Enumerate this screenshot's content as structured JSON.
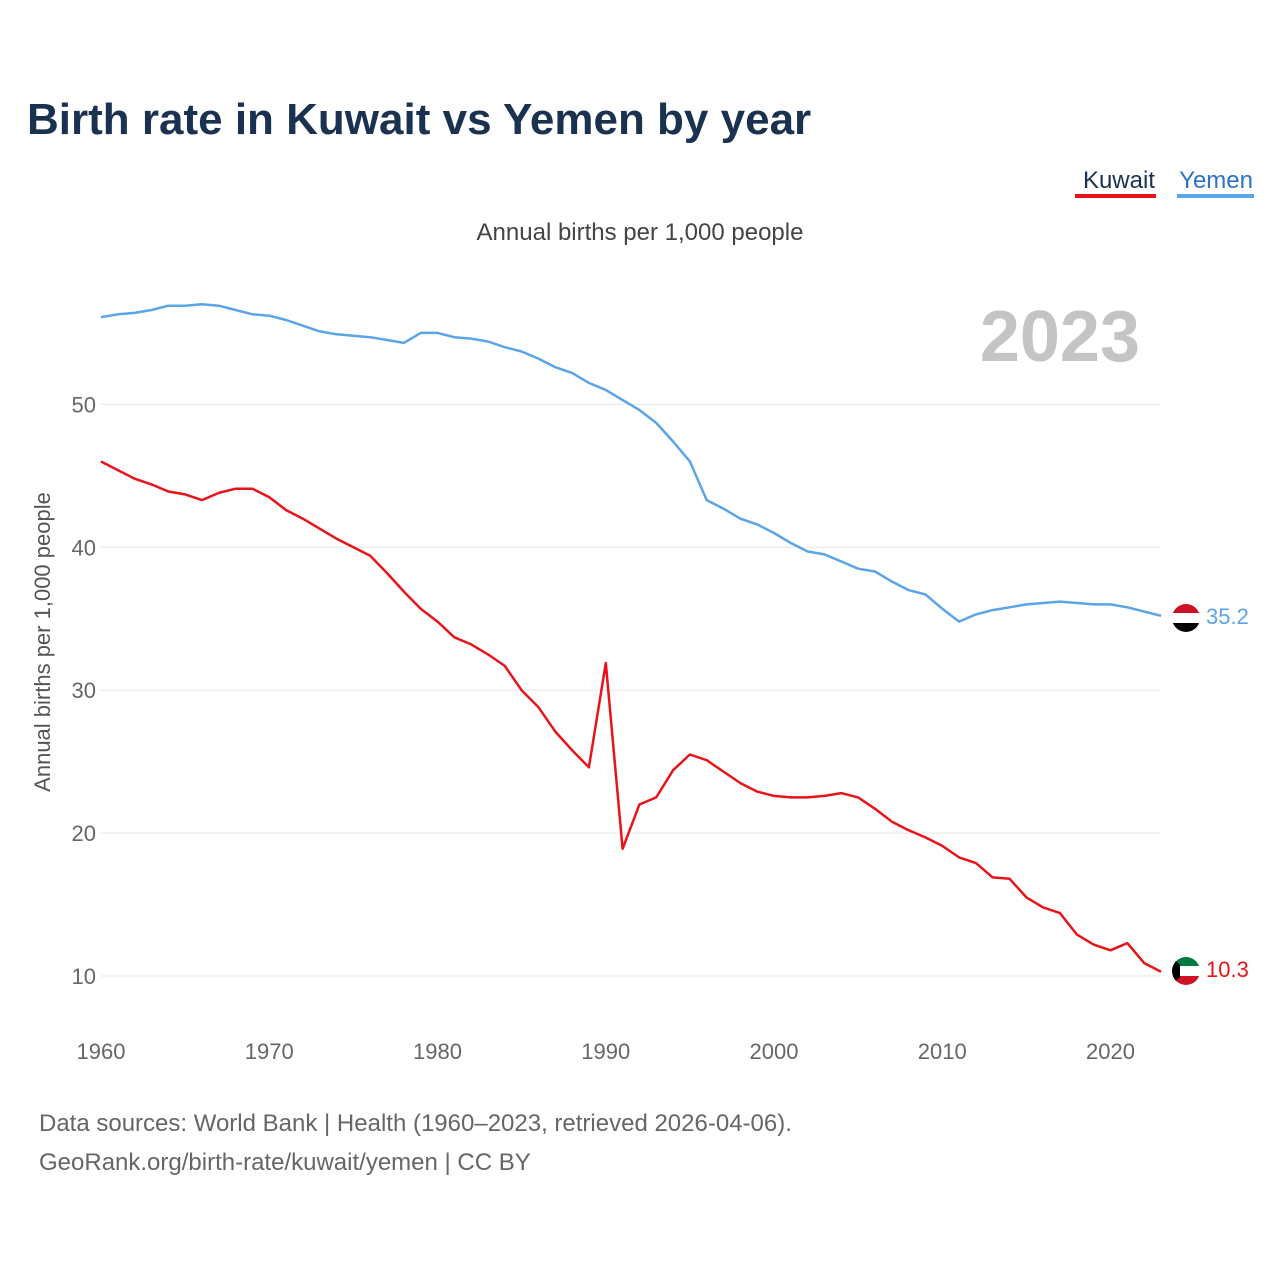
{
  "title": "Birth rate in Kuwait vs Yemen by year",
  "subtitle": "Annual births per 1,000 people",
  "year_watermark": "2023",
  "source_line1": "Data sources: World Bank | Health (1960–2023, retrieved 2026-04-06).",
  "source_line2": "GeoRank.org/birth-rate/kuwait/yemen | CC BY",
  "chart_data": {
    "type": "line",
    "title": "Birth rate in Kuwait vs Yemen by year",
    "subtitle": "Annual births per 1,000 people",
    "xlabel": "",
    "ylabel": "Annual births per 1,000 people",
    "xlim": [
      1960,
      2023
    ],
    "ylim": [
      10,
      58
    ],
    "x_ticks": [
      1960,
      1970,
      1980,
      1990,
      2000,
      2010,
      2020
    ],
    "y_ticks": [
      10,
      20,
      30,
      40,
      50
    ],
    "grid": true,
    "legend_position": "top-right",
    "x": [
      1960,
      1961,
      1962,
      1963,
      1964,
      1965,
      1966,
      1967,
      1968,
      1969,
      1970,
      1971,
      1972,
      1973,
      1974,
      1975,
      1976,
      1977,
      1978,
      1979,
      1980,
      1981,
      1982,
      1983,
      1984,
      1985,
      1986,
      1987,
      1988,
      1989,
      1990,
      1991,
      1992,
      1993,
      1994,
      1995,
      1996,
      1997,
      1998,
      1999,
      2000,
      2001,
      2002,
      2003,
      2004,
      2005,
      2006,
      2007,
      2008,
      2009,
      2010,
      2011,
      2012,
      2013,
      2014,
      2015,
      2016,
      2017,
      2018,
      2019,
      2020,
      2021,
      2022,
      2023
    ],
    "series": [
      {
        "name": "Kuwait",
        "color": "#e8141a",
        "end_label": "10.3",
        "values": [
          46.0,
          45.4,
          44.8,
          44.4,
          43.9,
          43.7,
          43.3,
          43.8,
          44.1,
          44.1,
          43.5,
          42.6,
          42.0,
          41.3,
          40.6,
          40.0,
          39.4,
          38.2,
          36.9,
          35.7,
          34.8,
          33.7,
          33.2,
          32.5,
          31.7,
          30.0,
          28.8,
          27.1,
          25.8,
          24.6,
          31.9,
          18.9,
          22.0,
          22.5,
          24.4,
          25.5,
          25.1,
          24.3,
          23.5,
          22.9,
          22.6,
          22.5,
          22.5,
          22.6,
          22.8,
          22.5,
          21.7,
          20.8,
          20.2,
          19.7,
          19.1,
          18.3,
          17.9,
          16.9,
          16.8,
          15.5,
          14.8,
          14.4,
          12.9,
          12.2,
          11.8,
          12.3,
          10.9,
          10.3
        ]
      },
      {
        "name": "Yemen",
        "color": "#5ba4e8",
        "end_label": "35.2",
        "values": [
          56.1,
          56.3,
          56.4,
          56.6,
          56.9,
          56.9,
          57.0,
          56.9,
          56.6,
          56.3,
          56.2,
          55.9,
          55.5,
          55.1,
          54.9,
          54.8,
          54.7,
          54.5,
          54.3,
          55.0,
          55.0,
          54.7,
          54.6,
          54.4,
          54.0,
          53.7,
          53.2,
          52.6,
          52.2,
          51.5,
          51.0,
          50.3,
          49.6,
          48.7,
          47.4,
          46.0,
          43.3,
          42.7,
          42.0,
          41.6,
          41.0,
          40.3,
          39.7,
          39.5,
          39.0,
          38.5,
          38.3,
          37.6,
          37.0,
          36.7,
          35.7,
          34.8,
          35.3,
          35.6,
          35.8,
          36.0,
          36.1,
          36.2,
          36.1,
          36.0,
          36.0,
          35.8,
          35.5,
          35.2
        ]
      }
    ]
  }
}
